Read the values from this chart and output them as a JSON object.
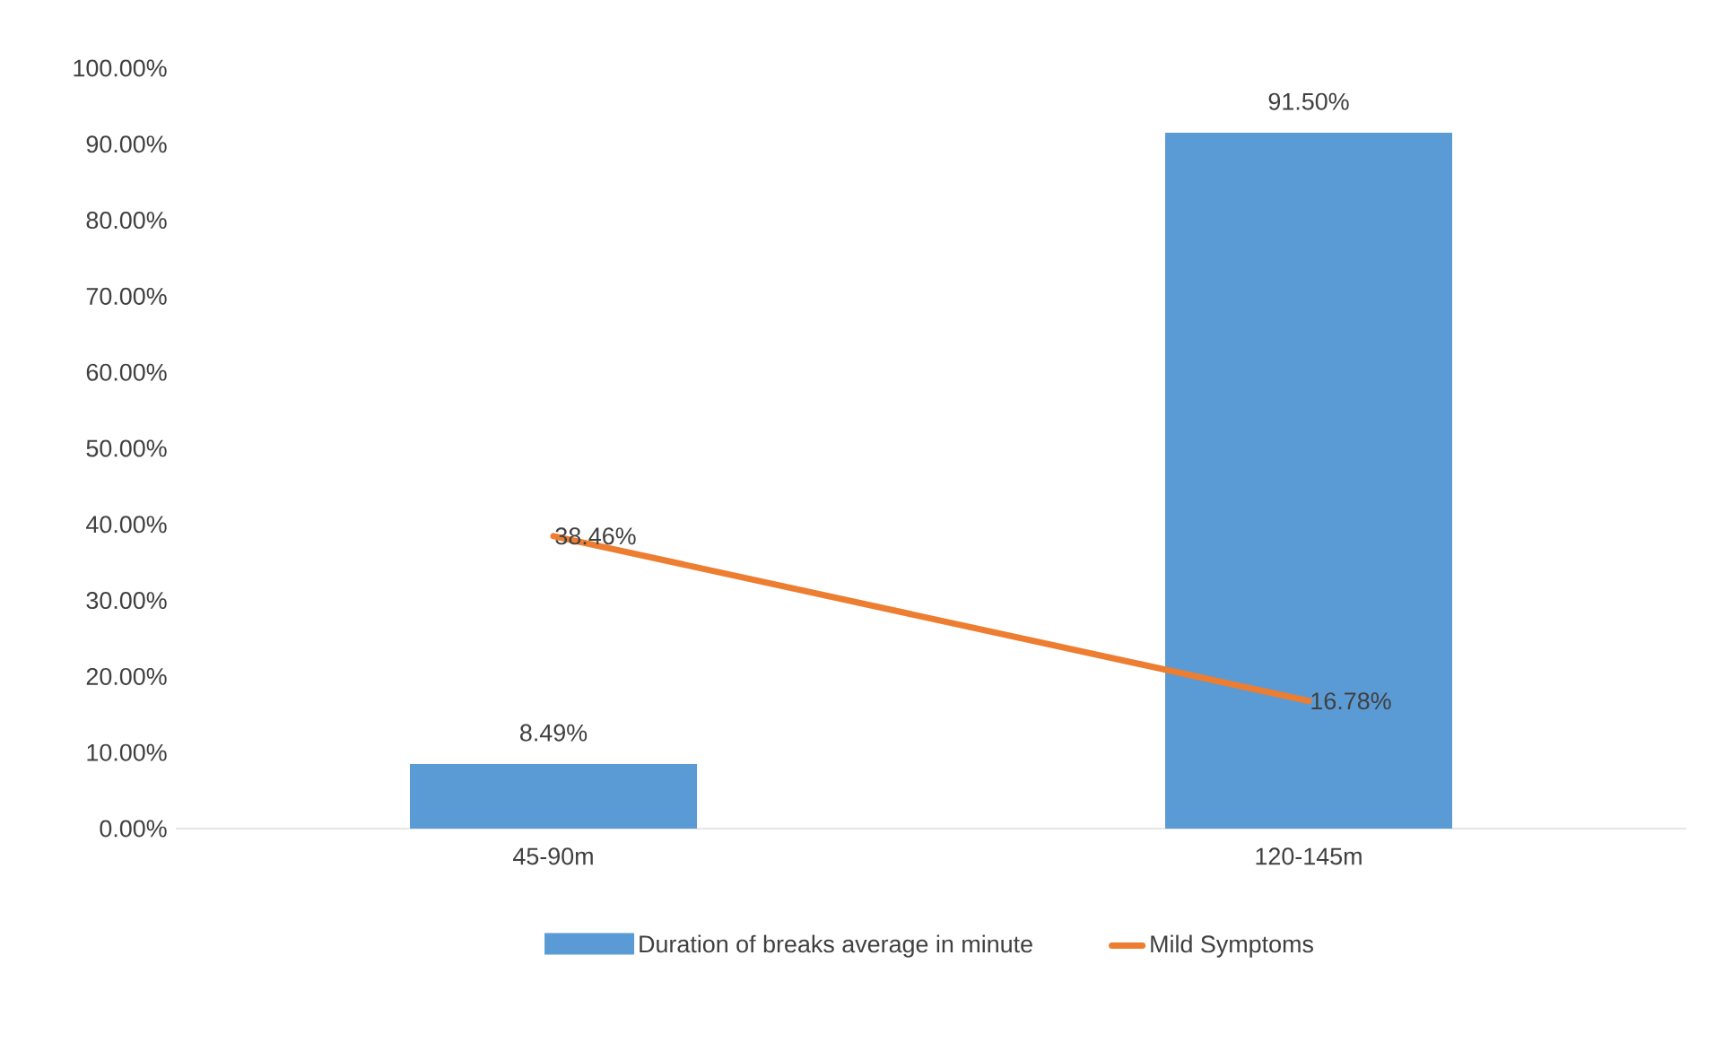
{
  "chart_data": {
    "type": "bar",
    "categories": [
      "45-90m",
      "120-145m"
    ],
    "series": [
      {
        "name": "Duration of breaks average in minute",
        "color": "#5b9bd5",
        "values": [
          8.49,
          91.5
        ],
        "value_labels": [
          "8.49%",
          "91.50%"
        ]
      },
      {
        "name": "Mild Symptoms",
        "type": "line",
        "color": "#ed7d31",
        "values": [
          38.46,
          16.78
        ],
        "value_labels": [
          "38.46%",
          "16.78%"
        ]
      }
    ],
    "ylim": [
      0,
      100
    ],
    "yticks": [
      {
        "value": 0,
        "label": "0.00%"
      },
      {
        "value": 10,
        "label": "10.00%"
      },
      {
        "value": 20,
        "label": "20.00%"
      },
      {
        "value": 30,
        "label": "30.00%"
      },
      {
        "value": 40,
        "label": "40.00%"
      },
      {
        "value": 50,
        "label": "50.00%"
      },
      {
        "value": 60,
        "label": "60.00%"
      },
      {
        "value": 70,
        "label": "70.00%"
      },
      {
        "value": 80,
        "label": "80.00%"
      },
      {
        "value": 90,
        "label": "90.00%"
      },
      {
        "value": 100,
        "label": "100.00%"
      }
    ],
    "grid": false,
    "legend": "bottom"
  }
}
